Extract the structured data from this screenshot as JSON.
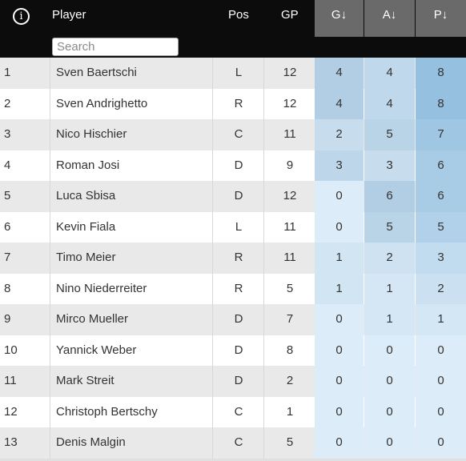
{
  "header": {
    "info_icon": "info-icon",
    "player": "Player",
    "pos": "Pos",
    "gp": "GP",
    "g": "G↓",
    "a": "A↓",
    "p": "P↓",
    "search_placeholder": "Search"
  },
  "colors": {
    "header_bg": "#0c0c0c",
    "sort_header_bg": "#6a6a6a",
    "row_odd": "#e9e9e9",
    "row_even": "#ffffff"
  },
  "rows": [
    {
      "num": "1",
      "name": "Sven Baertschi",
      "pos": "L",
      "gp": "12",
      "g": "4",
      "a": "4",
      "p": "8"
    },
    {
      "num": "2",
      "name": "Sven Andrighetto",
      "pos": "R",
      "gp": "12",
      "g": "4",
      "a": "4",
      "p": "8"
    },
    {
      "num": "3",
      "name": "Nico Hischier",
      "pos": "C",
      "gp": "11",
      "g": "2",
      "a": "5",
      "p": "7"
    },
    {
      "num": "4",
      "name": "Roman Josi",
      "pos": "D",
      "gp": "9",
      "g": "3",
      "a": "3",
      "p": "6"
    },
    {
      "num": "5",
      "name": "Luca Sbisa",
      "pos": "D",
      "gp": "12",
      "g": "0",
      "a": "6",
      "p": "6"
    },
    {
      "num": "6",
      "name": "Kevin Fiala",
      "pos": "L",
      "gp": "11",
      "g": "0",
      "a": "5",
      "p": "5"
    },
    {
      "num": "7",
      "name": "Timo Meier",
      "pos": "R",
      "gp": "11",
      "g": "1",
      "a": "2",
      "p": "3"
    },
    {
      "num": "8",
      "name": "Nino Niederreiter",
      "pos": "R",
      "gp": "5",
      "g": "1",
      "a": "1",
      "p": "2"
    },
    {
      "num": "9",
      "name": "Mirco Mueller",
      "pos": "D",
      "gp": "7",
      "g": "0",
      "a": "1",
      "p": "1"
    },
    {
      "num": "10",
      "name": "Yannick Weber",
      "pos": "D",
      "gp": "8",
      "g": "0",
      "a": "0",
      "p": "0"
    },
    {
      "num": "11",
      "name": "Mark Streit",
      "pos": "D",
      "gp": "2",
      "g": "0",
      "a": "0",
      "p": "0"
    },
    {
      "num": "12",
      "name": "Christoph Bertschy",
      "pos": "C",
      "gp": "1",
      "g": "0",
      "a": "0",
      "p": "0"
    },
    {
      "num": "13",
      "name": "Denis Malgin",
      "pos": "C",
      "gp": "5",
      "g": "0",
      "a": "0",
      "p": "0"
    }
  ]
}
